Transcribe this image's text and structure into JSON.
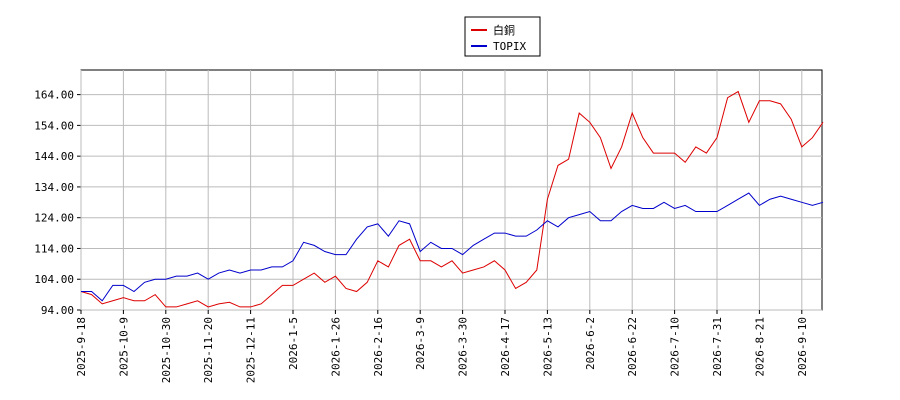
{
  "chart_data": {
    "type": "line",
    "categories": [
      "2025-9-18",
      null,
      null,
      null,
      "2025-10-9",
      null,
      null,
      null,
      "2025-10-30",
      null,
      null,
      null,
      "2025-11-20",
      null,
      null,
      null,
      "2025-12-11",
      null,
      null,
      null,
      "2026-1-5",
      null,
      null,
      null,
      "2026-1-26",
      null,
      null,
      null,
      "2026-2-16",
      null,
      null,
      null,
      "2026-3-9",
      null,
      null,
      null,
      "2026-3-30",
      null,
      null,
      null,
      "2026-4-17",
      null,
      null,
      null,
      "2026-5-13",
      null,
      null,
      null,
      "2026-6-2",
      null,
      null,
      null,
      "2026-6-22",
      null,
      null,
      null,
      "2026-7-10",
      null,
      null,
      null,
      "2026-7-31",
      null,
      null,
      null,
      "2026-8-21",
      null,
      null,
      null,
      "2026-9-10",
      null,
      null
    ],
    "series": [
      {
        "name": "白銅",
        "color": "#dd0000",
        "values": [
          100,
          99,
          96,
          97,
          98,
          97,
          97,
          99,
          95,
          95,
          96,
          97,
          95,
          96,
          96.5,
          95,
          95,
          96,
          99,
          102,
          102,
          104,
          106,
          103,
          105,
          101,
          100,
          103,
          110,
          108,
          115,
          117,
          110,
          110,
          108,
          110,
          106,
          107,
          108,
          110,
          107,
          101,
          103,
          107,
          130,
          141,
          143,
          158,
          155,
          150,
          140,
          147,
          158,
          150,
          145,
          145,
          145,
          142,
          147,
          145,
          150,
          163,
          165,
          155,
          162,
          162,
          161,
          156,
          147,
          150,
          155
        ]
      },
      {
        "name": "TOPIX",
        "color": "#0000cc",
        "values": [
          100,
          100,
          97,
          102,
          102,
          100,
          103,
          104,
          104,
          105,
          105,
          106,
          104,
          106,
          107,
          106,
          107,
          107,
          108,
          108,
          110,
          116,
          115,
          113,
          112,
          112,
          117,
          121,
          122,
          118,
          123,
          122,
          113,
          116,
          114,
          114,
          112,
          115,
          117,
          119,
          119,
          118,
          118,
          120,
          123,
          121,
          124,
          125,
          126,
          123,
          123,
          126,
          128,
          127,
          127,
          129,
          127,
          128,
          126,
          126,
          126,
          128,
          130,
          132,
          128,
          130,
          131,
          130,
          129,
          128,
          129
        ]
      }
    ],
    "ylim": [
      94,
      172
    ],
    "yticks": [
      {
        "value": 94,
        "label": "94.00"
      },
      {
        "value": 104,
        "label": "104.00"
      },
      {
        "value": 114,
        "label": "114.00"
      },
      {
        "value": 124,
        "label": "124.00"
      },
      {
        "value": 134,
        "label": "134.00"
      },
      {
        "value": 144,
        "label": "144.00"
      },
      {
        "value": 154,
        "label": "154.00"
      },
      {
        "value": 164,
        "label": "164.00"
      }
    ],
    "grid": true
  }
}
